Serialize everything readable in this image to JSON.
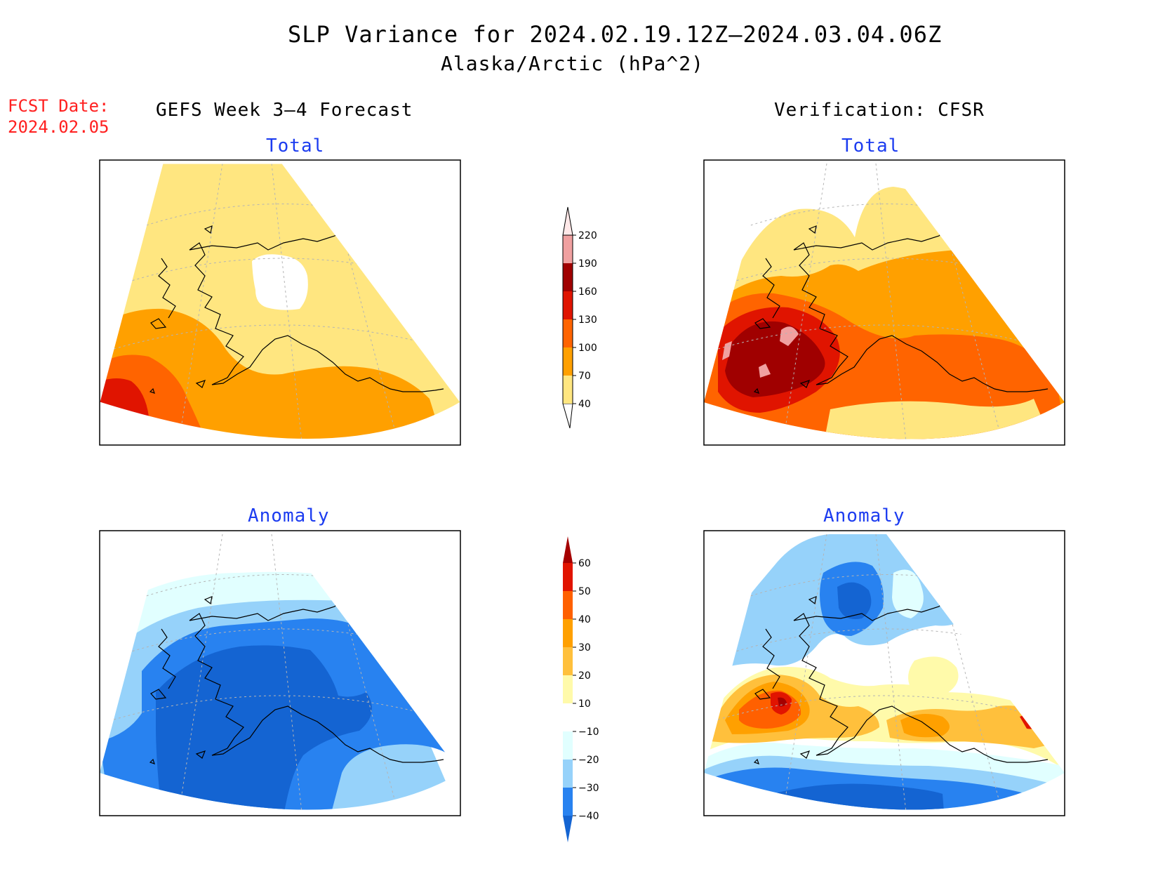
{
  "header": {
    "title": "SLP Variance for 2024.02.19.12Z–2024.03.04.06Z",
    "subtitle": "Alaska/Arctic (hPa^2)"
  },
  "forecast_date": {
    "label": "FCST Date:",
    "value": "2024.02.05"
  },
  "columns": {
    "left": "GEFS Week 3–4 Forecast",
    "right": "Verification: CFSR"
  },
  "panels": {
    "fcst_total": {
      "title": "Total"
    },
    "verif_total": {
      "title": "Total"
    },
    "fcst_anom": {
      "title": "Anomaly"
    },
    "verif_anom": {
      "title": "Anomaly"
    }
  },
  "colorbars": {
    "total": {
      "levels": [
        "40",
        "70",
        "100",
        "130",
        "160",
        "190",
        "220"
      ],
      "colors": [
        "#ffe680",
        "#ffa000",
        "#ff6400",
        "#e01400",
        "#a00000",
        "#f0a0a0",
        "#ffe8e8"
      ]
    },
    "anomaly": {
      "levels": [
        "−40",
        "−30",
        "−20",
        "−10",
        "10",
        "20",
        "30",
        "40",
        "50",
        "60"
      ],
      "colors": [
        "#1464d2",
        "#2882f0",
        "#96d2fa",
        "#e1ffff",
        "#ffffff",
        "#fffaaa",
        "#ffc03c",
        "#ffa000",
        "#ff6000",
        "#e11400",
        "#a50000"
      ]
    }
  },
  "palette": {
    "t40": "#ffe680",
    "t70": "#ffa000",
    "t100": "#ff6400",
    "t130": "#e01400",
    "t160": "#a00000",
    "t190": "#f0a0a0",
    "a_m40": "#1464d2",
    "a_m30": "#2882f0",
    "a_m20": "#96d2fa",
    "a_m10": "#e1ffff",
    "a_p10": "#fffaaa",
    "a_p20": "#ffc03c",
    "a_p30": "#ffa000",
    "a_p40": "#ff6000",
    "a_p50": "#e11400"
  }
}
